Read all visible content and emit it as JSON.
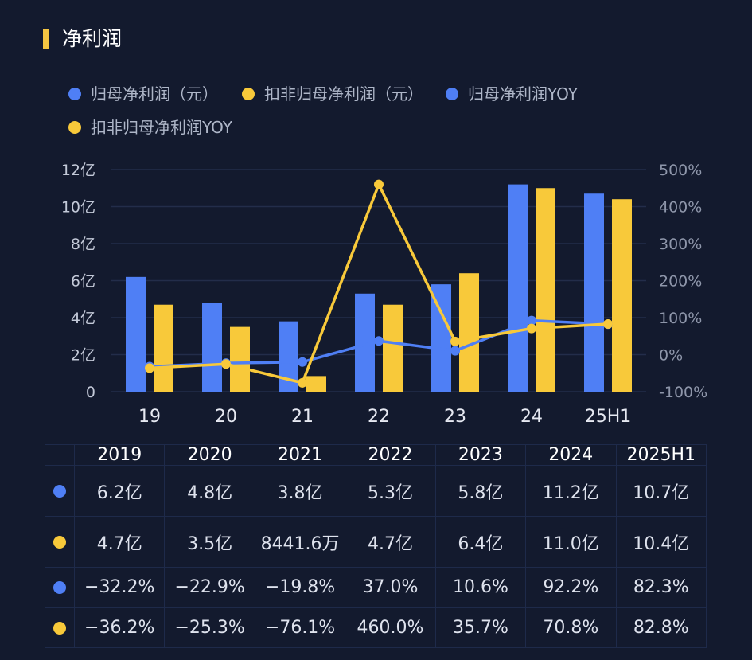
{
  "title": "净利润",
  "colors": {
    "blue": "#4f7ff5",
    "yellow": "#f8c93a",
    "accent": "#f4c542",
    "grid": "#232d4a"
  },
  "legend": [
    {
      "label": "归母净利润（元）",
      "color": "#4f7ff5"
    },
    {
      "label": "扣非归母净利润（元）",
      "color": "#f8c93a"
    },
    {
      "label": "归母净利润YOY",
      "color": "#4f7ff5"
    },
    {
      "label": "扣非归母净利润YOY",
      "color": "#f8c93a"
    }
  ],
  "chart_data": {
    "type": "bar",
    "categories": [
      "19",
      "20",
      "21",
      "22",
      "23",
      "24",
      "25H1"
    ],
    "series": [
      {
        "name": "归母净利润（元）",
        "kind": "bar",
        "axis": "left",
        "values": [
          6.2,
          4.8,
          3.8,
          5.3,
          5.8,
          11.2,
          10.7
        ]
      },
      {
        "name": "扣非归母净利润（元）",
        "kind": "bar",
        "axis": "left",
        "values": [
          4.7,
          3.5,
          0.844,
          4.7,
          6.4,
          11.0,
          10.4
        ]
      },
      {
        "name": "归母净利润YOY",
        "kind": "line",
        "axis": "right",
        "values": [
          -32.2,
          -22.9,
          -19.8,
          37.0,
          10.6,
          92.2,
          82.3
        ]
      },
      {
        "name": "扣非归母净利润YOY",
        "kind": "line",
        "axis": "right",
        "values": [
          -36.2,
          -25.3,
          -76.1,
          460.0,
          35.7,
          70.8,
          82.8
        ]
      }
    ],
    "y_left": {
      "min": 0,
      "max": 12,
      "ticks": [
        "0",
        "2亿",
        "4亿",
        "6亿",
        "8亿",
        "10亿",
        "12亿"
      ],
      "tick_values": [
        0,
        2,
        4,
        6,
        8,
        10,
        12
      ]
    },
    "y_right": {
      "min": -100,
      "max": 500,
      "ticks": [
        "-100%",
        "0%",
        "100%",
        "200%",
        "300%",
        "400%",
        "500%"
      ],
      "tick_values": [
        -100,
        0,
        100,
        200,
        300,
        400,
        500
      ]
    },
    "grid": true
  },
  "table": {
    "headers": [
      "2019",
      "2020",
      "2021",
      "2022",
      "2023",
      "2024",
      "2025H1"
    ],
    "rows": [
      {
        "color": "#4f7ff5",
        "cells": [
          "6.2亿",
          "4.8亿",
          "3.8亿",
          "5.3亿",
          "5.8亿",
          "11.2亿",
          "10.7亿"
        ]
      },
      {
        "color": "#f8c93a",
        "cells": [
          "4.7亿",
          "3.5亿",
          "8441.6万",
          "4.7亿",
          "6.4亿",
          "11.0亿",
          "10.4亿"
        ]
      },
      {
        "color": "#4f7ff5",
        "cells": [
          "−32.2%",
          "−22.9%",
          "−19.8%",
          "37.0%",
          "10.6%",
          "92.2%",
          "82.3%"
        ]
      },
      {
        "color": "#f8c93a",
        "cells": [
          "−36.2%",
          "−25.3%",
          "−76.1%",
          "460.0%",
          "35.7%",
          "70.8%",
          "82.8%"
        ]
      }
    ]
  }
}
